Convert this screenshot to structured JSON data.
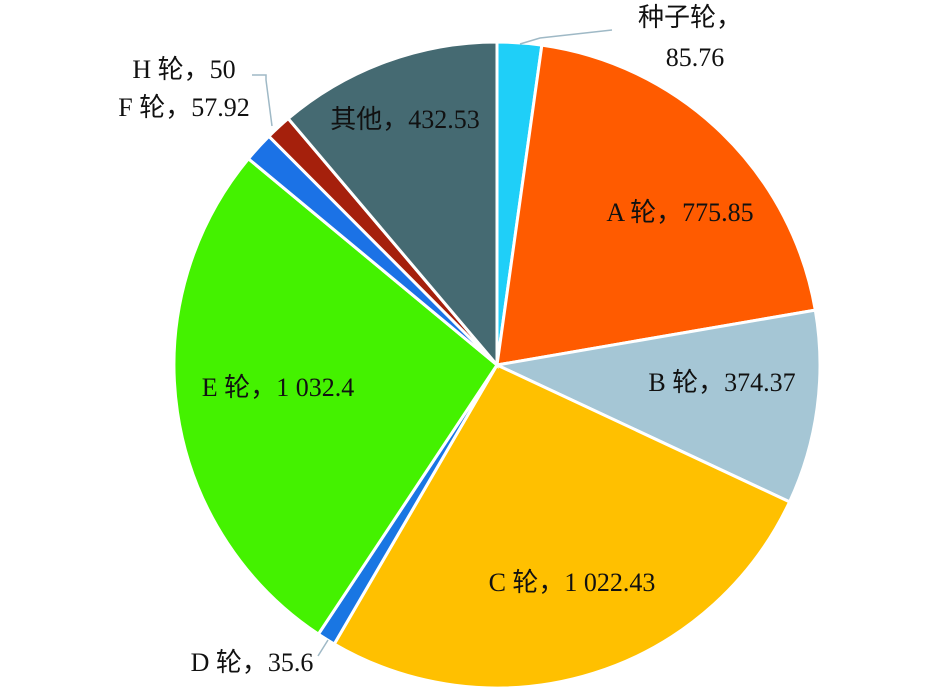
{
  "chart_data": {
    "type": "pie",
    "categories": [
      "种子轮",
      "A 轮",
      "B 轮",
      "C 轮",
      "D 轮",
      "E 轮",
      "F 轮",
      "H 轮",
      "其他"
    ],
    "values": [
      85.76,
      775.85,
      374.37,
      1022.43,
      35.6,
      1032.4,
      57.92,
      50,
      432.53
    ],
    "value_labels": [
      "85.76",
      "775.85",
      "374.37",
      "1 022.43",
      "35.6",
      "1 032.4",
      "57.92",
      "50",
      "432.53"
    ],
    "label_separator": "，",
    "colors": [
      "#1fcff8",
      "#ff5b00",
      "#a5c6d5",
      "#ffc000",
      "#1976e3",
      "#44f200",
      "#1b72e6",
      "#a5200c",
      "#456a72"
    ]
  }
}
